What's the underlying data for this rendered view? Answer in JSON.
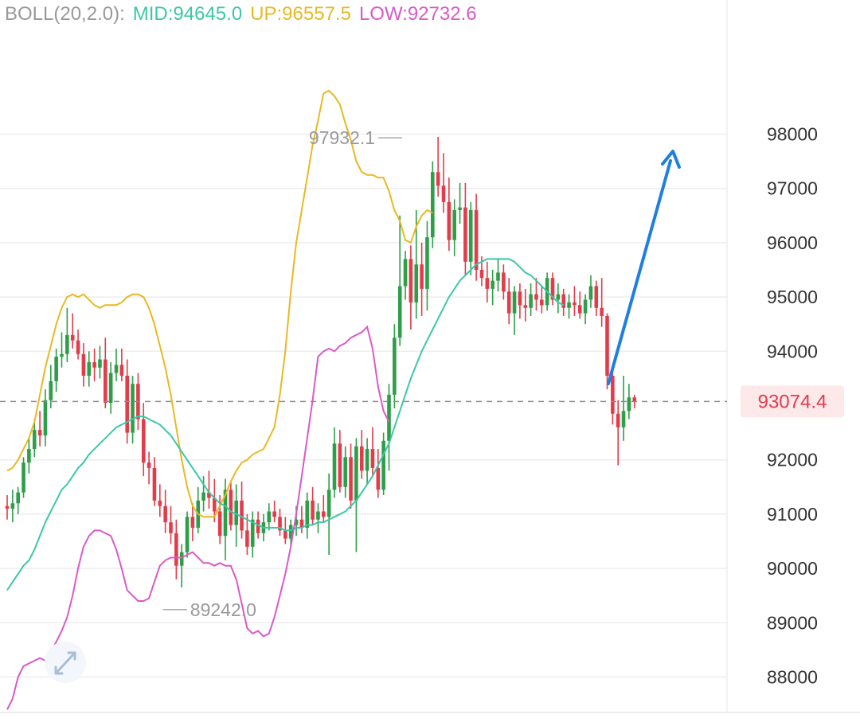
{
  "legend": {
    "name": "BOLL(20,2.0):",
    "mid_label": "MID:94645.0",
    "up_label": "UP:96557.5",
    "low_label": "LOW:92732.6"
  },
  "colors": {
    "mid": "#3cc7a8",
    "up": "#e8b923",
    "low": "#d95ac8",
    "bull": "#2e9e48",
    "bear": "#e23c4b",
    "arrow": "#1f7fe0",
    "grid": "#eeeeee",
    "name": "#999999"
  },
  "chart_data": {
    "type": "candlestick",
    "y_ticks": [
      "98000",
      "97000",
      "96000",
      "95000",
      "94000",
      "92000",
      "91000",
      "90000",
      "89000",
      "88000"
    ],
    "ylim": [
      87500,
      100500
    ],
    "current_price": 93074.4,
    "current_price_label": "93074.4",
    "high_marker": {
      "value": 97932.1,
      "label": "97932.1",
      "index": 73
    },
    "low_marker": {
      "value": 89242.0,
      "label": "89242.0",
      "index": 28
    },
    "candles": [
      [
        91150,
        91350,
        90900,
        91100
      ],
      [
        91100,
        91450,
        90850,
        91200
      ],
      [
        91200,
        91500,
        91000,
        91400
      ],
      [
        91400,
        92050,
        91300,
        91950
      ],
      [
        91950,
        92400,
        91750,
        92200
      ],
      [
        92200,
        92750,
        92050,
        92550
      ],
      [
        92550,
        92900,
        92250,
        92450
      ],
      [
        92450,
        93300,
        92250,
        93100
      ],
      [
        93100,
        93750,
        92950,
        93450
      ],
      [
        93450,
        94050,
        93250,
        93900
      ],
      [
        93900,
        94350,
        93700,
        93950
      ],
      [
        93950,
        94800,
        93800,
        94300
      ],
      [
        94300,
        94700,
        94050,
        94200
      ],
      [
        94200,
        94400,
        93850,
        93950
      ],
      [
        93950,
        94150,
        93350,
        93550
      ],
      [
        93550,
        94000,
        93350,
        93800
      ],
      [
        93800,
        94050,
        93450,
        93700
      ],
      [
        93700,
        94100,
        93500,
        93850
      ],
      [
        93850,
        94250,
        92950,
        93050
      ],
      [
        93050,
        93800,
        92850,
        93600
      ],
      [
        93600,
        94050,
        93450,
        93750
      ],
      [
        93750,
        94050,
        93450,
        93550
      ],
      [
        93550,
        93850,
        92300,
        92500
      ],
      [
        92500,
        93550,
        92300,
        93400
      ],
      [
        93400,
        93600,
        92550,
        92750
      ],
      [
        92750,
        93050,
        91700,
        91950
      ],
      [
        91950,
        92150,
        91550,
        91850
      ],
      [
        91850,
        92050,
        91150,
        91250
      ],
      [
        91250,
        91550,
        90950,
        91150
      ],
      [
        91150,
        91450,
        90650,
        90850
      ],
      [
        90850,
        91150,
        90450,
        90650
      ],
      [
        90650,
        90900,
        89800,
        90050
      ],
      [
        90050,
        90450,
        89650,
        90300
      ],
      [
        90300,
        91050,
        90200,
        90950
      ],
      [
        90950,
        91200,
        90500,
        90750
      ],
      [
        90750,
        91500,
        90650,
        91250
      ],
      [
        91250,
        91700,
        91050,
        91400
      ],
      [
        91400,
        91800,
        91100,
        91300
      ],
      [
        91300,
        91650,
        90850,
        91050
      ],
      [
        91050,
        91350,
        90450,
        90600
      ],
      [
        90600,
        91650,
        90150,
        91450
      ],
      [
        91450,
        91600,
        90700,
        90800
      ],
      [
        90800,
        91550,
        90400,
        91250
      ],
      [
        91250,
        91600,
        90550,
        90700
      ],
      [
        90700,
        91000,
        90250,
        90400
      ],
      [
        90400,
        91050,
        90200,
        90900
      ],
      [
        90900,
        91050,
        90550,
        90650
      ],
      [
        90650,
        91000,
        90500,
        90850
      ],
      [
        90850,
        91200,
        90700,
        91050
      ],
      [
        91050,
        91250,
        90850,
        90950
      ],
      [
        90950,
        91100,
        90600,
        90700
      ],
      [
        90700,
        90950,
        90450,
        90550
      ],
      [
        90550,
        90900,
        90400,
        90800
      ],
      [
        90800,
        91150,
        90600,
        90900
      ],
      [
        90900,
        91150,
        90650,
        90750
      ],
      [
        90750,
        91400,
        90550,
        91250
      ],
      [
        91250,
        91500,
        90800,
        90900
      ],
      [
        90900,
        91200,
        90650,
        91050
      ],
      [
        91050,
        91350,
        90850,
        90950
      ],
      [
        90950,
        91750,
        90250,
        91450
      ],
      [
        91450,
        92600,
        91300,
        92300
      ],
      [
        92300,
        92550,
        91400,
        91500
      ],
      [
        91500,
        92250,
        91300,
        92050
      ],
      [
        92050,
        92300,
        91100,
        91250
      ],
      [
        91250,
        92400,
        90300,
        92250
      ],
      [
        92250,
        92550,
        91650,
        91800
      ],
      [
        91800,
        92400,
        91550,
        92200
      ],
      [
        92200,
        92600,
        91700,
        91850
      ],
      [
        91850,
        92200,
        91300,
        91450
      ],
      [
        91450,
        92500,
        91350,
        92350
      ],
      [
        92350,
        93400,
        91800,
        93200
      ],
      [
        93200,
        94500,
        92950,
        94250
      ],
      [
        94250,
        96500,
        94100,
        95200
      ],
      [
        95200,
        95850,
        94950,
        95700
      ],
      [
        95700,
        95950,
        94400,
        94900
      ],
      [
        94900,
        96600,
        94600,
        95600
      ],
      [
        95600,
        96000,
        94650,
        95150
      ],
      [
        95150,
        96400,
        94750,
        96100
      ],
      [
        96100,
        97500,
        95900,
        97300
      ],
      [
        97300,
        97950,
        96850,
        97050
      ],
      [
        97050,
        97650,
        96550,
        96750
      ],
      [
        96750,
        97200,
        95850,
        96050
      ],
      [
        96050,
        96800,
        95750,
        96600
      ],
      [
        96600,
        97100,
        96350,
        96650
      ],
      [
        96650,
        97100,
        95400,
        95650
      ],
      [
        95650,
        96750,
        95400,
        96600
      ],
      [
        96600,
        96900,
        95300,
        95500
      ],
      [
        95500,
        95750,
        95200,
        95350
      ],
      [
        95350,
        95650,
        94900,
        95150
      ],
      [
        95150,
        95500,
        94850,
        95300
      ],
      [
        95300,
        95700,
        95100,
        95450
      ],
      [
        95450,
        95600,
        94950,
        95100
      ],
      [
        95100,
        95350,
        94500,
        94700
      ],
      [
        94700,
        95200,
        94300,
        95100
      ],
      [
        95100,
        95250,
        94600,
        94850
      ],
      [
        94850,
        95150,
        94550,
        94800
      ],
      [
        94800,
        95250,
        94650,
        95050
      ],
      [
        95050,
        95350,
        94750,
        94950
      ],
      [
        94950,
        95200,
        94700,
        94850
      ],
      [
        94850,
        95450,
        94750,
        95350
      ],
      [
        95350,
        95450,
        94850,
        94950
      ],
      [
        94950,
        95250,
        94700,
        95050
      ],
      [
        95050,
        95150,
        94650,
        94800
      ],
      [
        94800,
        95050,
        94600,
        94900
      ],
      [
        94900,
        95200,
        94650,
        94850
      ],
      [
        94850,
        95100,
        94600,
        94700
      ],
      [
        94700,
        95050,
        94500,
        94950
      ],
      [
        94950,
        95400,
        94800,
        95200
      ],
      [
        95200,
        95300,
        94650,
        94800
      ],
      [
        94800,
        95350,
        94450,
        94650
      ],
      [
        94650,
        94700,
        93300,
        93550
      ],
      [
        93550,
        93650,
        92650,
        92850
      ],
      [
        92850,
        93100,
        91900,
        92600
      ],
      [
        92600,
        93550,
        92350,
        92900
      ],
      [
        92900,
        93400,
        92750,
        93150
      ],
      [
        93150,
        93200,
        92950,
        93074
      ]
    ],
    "mid": [
      89600,
      89750,
      89900,
      90050,
      90150,
      90350,
      90600,
      90850,
      91050,
      91250,
      91450,
      91550,
      91700,
      91850,
      91950,
      92100,
      92200,
      92300,
      92400,
      92500,
      92600,
      92650,
      92700,
      92750,
      92800,
      92800,
      92750,
      92700,
      92650,
      92550,
      92450,
      92300,
      92150,
      92000,
      91850,
      91700,
      91550,
      91400,
      91300,
      91200,
      91150,
      91050,
      91000,
      90950,
      90900,
      90850,
      90800,
      90750,
      90750,
      90750,
      90750,
      90700,
      90700,
      90750,
      90750,
      90800,
      90800,
      90850,
      90850,
      90900,
      90950,
      91000,
      91050,
      91150,
      91250,
      91400,
      91550,
      91700,
      91900,
      92100,
      92300,
      92600,
      92900,
      93200,
      93500,
      93750,
      94000,
      94200,
      94400,
      94600,
      94800,
      95000,
      95150,
      95300,
      95400,
      95500,
      95600,
      95650,
      95700,
      95700,
      95700,
      95700,
      95700,
      95650,
      95550,
      95450,
      95400,
      95300,
      95200,
      95100,
      95000,
      94900,
      94850
    ],
    "up": [
      91800,
      91850,
      92000,
      92200,
      92400,
      92700,
      93200,
      93700,
      94100,
      94500,
      94800,
      95000,
      95050,
      95000,
      95050,
      94950,
      94850,
      94800,
      94850,
      94850,
      94850,
      94900,
      95000,
      95050,
      95050,
      95000,
      94800,
      94500,
      94100,
      93700,
      93200,
      92600,
      92000,
      91500,
      91150,
      91000,
      90950,
      90950,
      90950,
      91150,
      91350,
      91600,
      91800,
      91950,
      92000,
      92100,
      92150,
      92200,
      92400,
      92600,
      93200,
      94000,
      95100,
      96000,
      96600,
      97200,
      97800,
      98250,
      98750,
      98800,
      98700,
      98550,
      98200,
      97900,
      97500,
      97300,
      97250,
      97250,
      97200,
      97200,
      96950,
      96600,
      96400,
      96050,
      96000,
      96300,
      96500,
      96600,
      96550
    ],
    "low": [
      87400,
      87600,
      88000,
      88200,
      88250,
      88300,
      88350,
      88300,
      88450,
      88650,
      88850,
      89100,
      89500,
      90000,
      90400,
      90600,
      90700,
      90700,
      90650,
      90600,
      90350,
      90000,
      89600,
      89500,
      89400,
      89400,
      89450,
      89750,
      90050,
      90150,
      90200,
      90200,
      90200,
      90250,
      90300,
      90200,
      90100,
      90100,
      90050,
      90100,
      90050,
      90050,
      89800,
      89350,
      88900,
      88800,
      88850,
      88750,
      88800,
      89100,
      89500,
      89900,
      90400,
      91000,
      91700,
      92400,
      93100,
      93900,
      94000,
      94050,
      94000,
      94100,
      94150,
      94250,
      94300,
      94350,
      94450,
      94050,
      93350,
      92900,
      92700
    ]
  }
}
